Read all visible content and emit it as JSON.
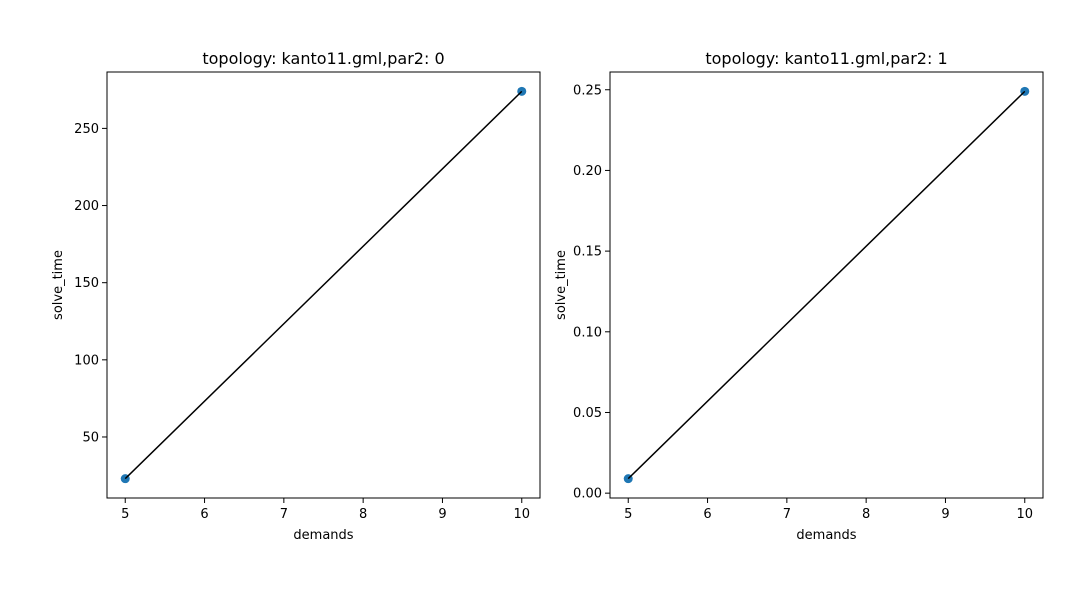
{
  "chart_data": [
    {
      "type": "scatter",
      "title": "topology: kanto11.gml,par2: 0",
      "xlabel": "demands",
      "ylabel": "solve_time",
      "x": [
        5,
        10
      ],
      "y": [
        23,
        274
      ],
      "xlim": [
        4.77,
        10.23
      ],
      "ylim": [
        10.45,
        286.55
      ],
      "xticks": [
        5,
        6,
        7,
        8,
        9,
        10
      ],
      "xtick_labels": [
        "5",
        "6",
        "7",
        "8",
        "9",
        "10"
      ],
      "yticks": [
        50,
        100,
        150,
        200,
        250
      ],
      "ytick_labels": [
        "50",
        "100",
        "150",
        "200",
        "250"
      ],
      "marker_color": "#1f77b4",
      "line_color": "#000000",
      "grid": false
    },
    {
      "type": "scatter",
      "title": "topology: kanto11.gml,par2: 1",
      "xlabel": "demands",
      "ylabel": "solve_time",
      "x": [
        5,
        10
      ],
      "y": [
        0.009,
        0.249
      ],
      "xlim": [
        4.77,
        10.23
      ],
      "ylim": [
        -0.003,
        0.261
      ],
      "xticks": [
        5,
        6,
        7,
        8,
        9,
        10
      ],
      "xtick_labels": [
        "5",
        "6",
        "7",
        "8",
        "9",
        "10"
      ],
      "yticks": [
        0.0,
        0.05,
        0.1,
        0.15,
        0.2,
        0.25
      ],
      "ytick_labels": [
        "0.00",
        "0.05",
        "0.10",
        "0.15",
        "0.20",
        "0.25"
      ],
      "marker_color": "#1f77b4",
      "line_color": "#000000",
      "grid": false
    }
  ]
}
